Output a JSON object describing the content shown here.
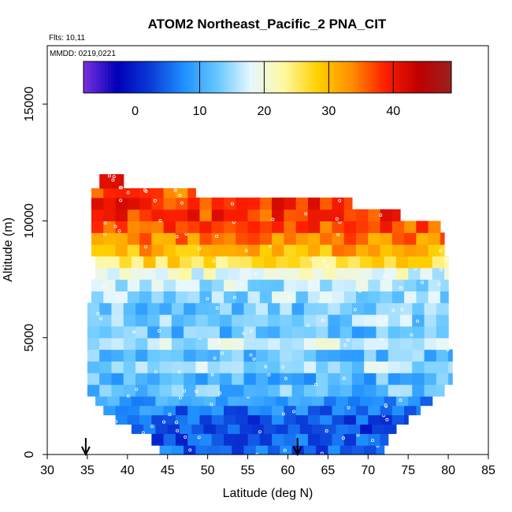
{
  "chart_data": {
    "type": "heatmap",
    "title": "ATOM2 Northeast_Pacific_2 PNA_CIT",
    "flights_label": "Flts: 10,11",
    "dates_label": "MMDD: 0219,0221",
    "xlabel": "Latitude (deg N)",
    "ylabel": "Altitude (m)",
    "xlim": [
      30,
      85
    ],
    "ylim": [
      0,
      17500
    ],
    "x_ticks": [
      "30",
      "35",
      "40",
      "45",
      "50",
      "55",
      "60",
      "65",
      "70",
      "75",
      "80",
      "85"
    ],
    "y_ticks": [
      "0",
      "5000",
      "10000",
      "15000"
    ],
    "colorbar": {
      "range": [
        -8,
        49
      ],
      "ticks": [
        "0",
        "10",
        "20",
        "30",
        "40"
      ],
      "colors": [
        "#7d2fe0",
        "#0000b8",
        "#0a3bd8",
        "#1e90ff",
        "#66c8ff",
        "#e6f7ff",
        "#fff8a0",
        "#ffd000",
        "#ff9000",
        "#ff2000",
        "#c00000",
        "#9a2020"
      ]
    },
    "profile_rows": [
      {
        "alt_bottom": 0,
        "alt_top": 400,
        "lat_min": 44.0,
        "lat_max": 72.0,
        "value": 5
      },
      {
        "alt_bottom": 400,
        "alt_top": 900,
        "lat_min": 43.0,
        "lat_max": 72.5,
        "value": 4
      },
      {
        "alt_bottom": 900,
        "alt_top": 1300,
        "lat_min": 40.5,
        "lat_max": 73.5,
        "value": 3
      },
      {
        "alt_bottom": 1300,
        "alt_top": 1700,
        "lat_min": 38.5,
        "lat_max": 75.0,
        "value": 4
      },
      {
        "alt_bottom": 1700,
        "alt_top": 2100,
        "lat_min": 37.0,
        "lat_max": 76.5,
        "value": 6
      },
      {
        "alt_bottom": 2100,
        "alt_top": 2500,
        "lat_min": 36.0,
        "lat_max": 78.0,
        "value": 8
      },
      {
        "alt_bottom": 2500,
        "alt_top": 3000,
        "lat_min": 35.0,
        "lat_max": 79.5,
        "value": 12
      },
      {
        "alt_bottom": 3000,
        "alt_top": 3500,
        "lat_min": 35.0,
        "lat_max": 80.5,
        "value": 11
      },
      {
        "alt_bottom": 3500,
        "alt_top": 4000,
        "lat_min": 35.0,
        "lat_max": 80.5,
        "value": 15
      },
      {
        "alt_bottom": 4000,
        "alt_top": 4500,
        "lat_min": 35.0,
        "lat_max": 80.5,
        "value": 12
      },
      {
        "alt_bottom": 4500,
        "alt_top": 5000,
        "lat_min": 35.0,
        "lat_max": 80.0,
        "value": 17
      },
      {
        "alt_bottom": 5000,
        "alt_top": 5500,
        "lat_min": 35.0,
        "lat_max": 80.0,
        "value": 12
      },
      {
        "alt_bottom": 5500,
        "alt_top": 6000,
        "lat_min": 35.0,
        "lat_max": 80.0,
        "value": 14
      },
      {
        "alt_bottom": 6000,
        "alt_top": 6500,
        "lat_min": 35.0,
        "lat_max": 80.0,
        "value": 13
      },
      {
        "alt_bottom": 6500,
        "alt_top": 7000,
        "lat_min": 35.5,
        "lat_max": 80.0,
        "value": 15
      },
      {
        "alt_bottom": 7000,
        "alt_top": 7500,
        "lat_min": 35.5,
        "lat_max": 80.0,
        "value": 16
      },
      {
        "alt_bottom": 7500,
        "alt_top": 8000,
        "lat_min": 36.0,
        "lat_max": 80.0,
        "value": 19
      },
      {
        "alt_bottom": 8000,
        "alt_top": 8500,
        "lat_min": 36.0,
        "lat_max": 80.0,
        "value": 26
      },
      {
        "alt_bottom": 8500,
        "alt_top": 9000,
        "lat_min": 35.5,
        "lat_max": 79.5,
        "value": 31
      },
      {
        "alt_bottom": 9000,
        "alt_top": 9500,
        "lat_min": 35.5,
        "lat_max": 79.5,
        "value": 34
      },
      {
        "alt_bottom": 9500,
        "alt_top": 10000,
        "lat_min": 35.5,
        "lat_max": 79.0,
        "value": 36
      },
      {
        "alt_bottom": 10000,
        "alt_top": 10500,
        "lat_min": 35.5,
        "lat_max": 74.0,
        "value": 38
      },
      {
        "alt_bottom": 10500,
        "alt_top": 11000,
        "lat_min": 35.5,
        "lat_max": 68.0,
        "value": 39
      },
      {
        "alt_bottom": 11000,
        "alt_top": 11400,
        "lat_min": 35.5,
        "lat_max": 48.5,
        "value": 36
      },
      {
        "alt_bottom": 11400,
        "alt_top": 12000,
        "lat_min": 36.5,
        "lat_max": 39.5,
        "value": 44
      }
    ],
    "arrows_lat": [
      34.8,
      61.2
    ]
  }
}
